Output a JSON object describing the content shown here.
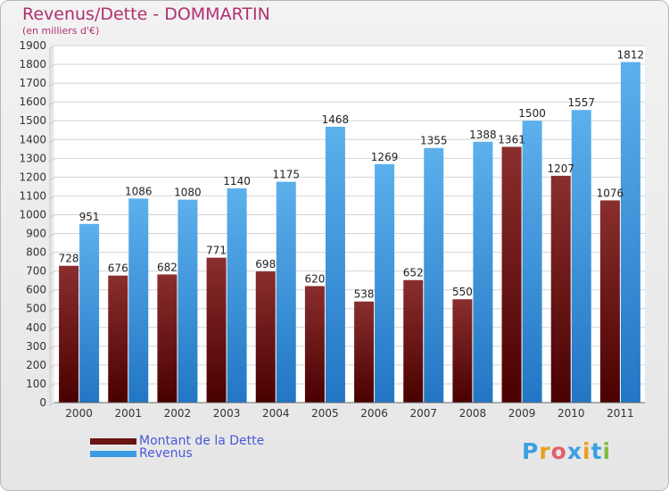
{
  "colors": {
    "dette": "#6b1414",
    "revenus": "#3a9be3",
    "title": "#b0306e",
    "legend_text": "#4a5ad8"
  },
  "brand": {
    "text": "Proxiti",
    "letters": [
      "P",
      "r",
      "o",
      "x",
      "i",
      "t",
      "i"
    ],
    "letter_colors": [
      "#3aa0e0",
      "#e8a020",
      "#e06070",
      "#3aa0e0",
      "#e8a020",
      "#3aa0e0",
      "#80c040"
    ]
  },
  "chart_data": {
    "type": "bar",
    "title": "Revenus/Dette - DOMMARTIN",
    "subtitle": "(en milliers d'€)",
    "xlabel": "",
    "ylabel": "",
    "categories": [
      "2000",
      "2001",
      "2002",
      "2003",
      "2004",
      "2005",
      "2006",
      "2007",
      "2008",
      "2009",
      "2010",
      "2011"
    ],
    "series": [
      {
        "name": "Montant de la Dette",
        "values": [
          728,
          676,
          682,
          771,
          698,
          620,
          538,
          652,
          550,
          1361,
          1207,
          1076
        ],
        "labels": [
          "728",
          "676",
          "682",
          "771",
          "698",
          "620",
          "538",
          "652",
          "550",
          "1361",
          "1207",
          "1076"
        ]
      },
      {
        "name": "Revenus",
        "values": [
          951,
          1086,
          1080,
          1140,
          1175,
          1468,
          1269,
          1355,
          1388,
          1500,
          1557,
          1812
        ],
        "labels": [
          "951",
          "1086",
          "1080",
          "1140",
          "1175",
          "1468",
          "1269",
          "1355",
          "1388",
          "1500",
          "1557",
          "1812"
        ]
      }
    ],
    "ylim": [
      0,
      1900
    ],
    "yticks": [
      "0",
      "100",
      "200",
      "300",
      "400",
      "500",
      "600",
      "700",
      "800",
      "900",
      "1000",
      "1100",
      "1200",
      "1300",
      "1400",
      "1500",
      "1600",
      "1700",
      "1800",
      "1900"
    ],
    "grid": true,
    "legend": "bottom-left"
  }
}
